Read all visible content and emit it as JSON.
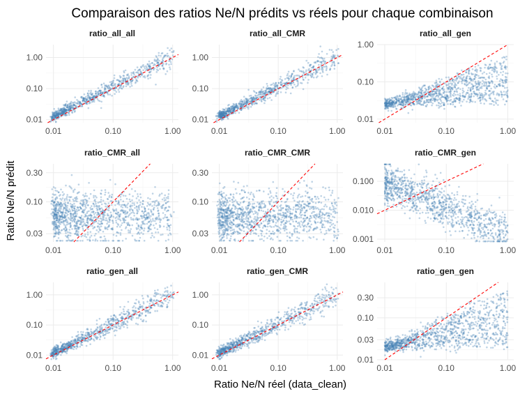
{
  "title": "Comparaison des ratios Ne/N prédits vs réels pour chaque combinaison",
  "xlabel": "Ratio Ne/N réel (data_clean)",
  "ylabel": "Ratio Ne/N prédit",
  "colors": {
    "points": "#4682b4",
    "identity_line": "#ff0000",
    "grid": "#ebebeb"
  },
  "chart_data": [
    {
      "type": "scatter",
      "title": "ratio_all_all",
      "x_scale": "log",
      "y_scale": "log",
      "xlim": [
        0.0075,
        1.25
      ],
      "ylim": [
        0.008,
        2.6
      ],
      "x_ticks": [
        "0.01",
        "0.10",
        "1.00"
      ],
      "y_ticks": [
        "0.01",
        "0.10",
        "1.00"
      ],
      "y_tick_values": [
        0.01,
        0.1,
        1
      ],
      "pattern": "linear",
      "center": [
        0.013,
        1.0
      ],
      "spread": 0.18,
      "n": 800
    },
    {
      "type": "scatter",
      "title": "ratio_all_CMR",
      "x_scale": "log",
      "y_scale": "log",
      "xlim": [
        0.0075,
        1.25
      ],
      "ylim": [
        0.008,
        2.6
      ],
      "x_ticks": [
        "0.01",
        "0.10",
        "1.00"
      ],
      "y_ticks": [
        "0.01",
        "0.10",
        "1.00"
      ],
      "y_tick_values": [
        0.01,
        0.1,
        1
      ],
      "pattern": "linear",
      "center": [
        0.013,
        1.0
      ],
      "spread": 0.18,
      "n": 800
    },
    {
      "type": "scatter",
      "title": "ratio_all_gen",
      "x_scale": "log",
      "y_scale": "log",
      "xlim": [
        0.0075,
        1.25
      ],
      "ylim": [
        0.008,
        1.0
      ],
      "x_ticks": [
        "0.01",
        "0.10",
        "1.00"
      ],
      "y_ticks": [
        "0.01",
        "0.10",
        "1.00"
      ],
      "y_tick_values": [
        0.01,
        0.1,
        1
      ],
      "pattern": "fan",
      "center": [
        0.018,
        0.025
      ],
      "spread": 0.15,
      "n": 1100
    },
    {
      "type": "scatter",
      "title": "ratio_CMR_all",
      "x_scale": "log",
      "y_scale": "log",
      "xlim": [
        0.0075,
        1.25
      ],
      "ylim": [
        0.022,
        0.42
      ],
      "x_ticks": [
        "0.01",
        "0.10",
        "1.00"
      ],
      "y_ticks": [
        "0.03",
        "0.10",
        "0.30"
      ],
      "y_tick_values": [
        0.03,
        0.1,
        0.3
      ],
      "pattern": "flat",
      "center": [
        0.06,
        0.06
      ],
      "spread": 0.2,
      "n": 1200
    },
    {
      "type": "scatter",
      "title": "ratio_CMR_CMR",
      "x_scale": "log",
      "y_scale": "log",
      "xlim": [
        0.0075,
        1.25
      ],
      "ylim": [
        0.022,
        0.42
      ],
      "x_ticks": [
        "0.01",
        "0.10",
        "1.00"
      ],
      "y_ticks": [
        "0.03",
        "0.10",
        "0.30"
      ],
      "y_tick_values": [
        0.03,
        0.1,
        0.3
      ],
      "pattern": "flat",
      "center": [
        0.06,
        0.06
      ],
      "spread": 0.2,
      "n": 1200
    },
    {
      "type": "scatter",
      "title": "ratio_CMR_gen",
      "x_scale": "log",
      "y_scale": "log",
      "xlim": [
        0.0075,
        1.25
      ],
      "ylim": [
        0.0008,
        0.4
      ],
      "x_ticks": [
        "0.01",
        "0.10",
        "1.00"
      ],
      "y_ticks": [
        "0.001",
        "0.010",
        "0.100"
      ],
      "y_tick_values": [
        0.001,
        0.01,
        0.1
      ],
      "pattern": "decline",
      "center": [
        0.1,
        0.003
      ],
      "spread": 0.35,
      "n": 1100
    },
    {
      "type": "scatter",
      "title": "ratio_gen_all",
      "x_scale": "log",
      "y_scale": "log",
      "xlim": [
        0.0075,
        1.25
      ],
      "ylim": [
        0.007,
        2.6
      ],
      "x_ticks": [
        "0.01",
        "0.10",
        "1.00"
      ],
      "y_ticks": [
        "0.01",
        "0.10",
        "1.00"
      ],
      "y_tick_values": [
        0.01,
        0.1,
        1
      ],
      "pattern": "linear",
      "center": [
        0.012,
        1.0
      ],
      "spread": 0.22,
      "n": 800
    },
    {
      "type": "scatter",
      "title": "ratio_gen_CMR",
      "x_scale": "log",
      "y_scale": "log",
      "xlim": [
        0.0075,
        1.25
      ],
      "ylim": [
        0.007,
        2.6
      ],
      "x_ticks": [
        "0.01",
        "0.10",
        "1.00"
      ],
      "y_ticks": [
        "0.01",
        "0.10",
        "1.00"
      ],
      "y_tick_values": [
        0.01,
        0.1,
        1
      ],
      "pattern": "linear",
      "center": [
        0.012,
        1.0
      ],
      "spread": 0.22,
      "n": 800
    },
    {
      "type": "scatter",
      "title": "ratio_gen_gen",
      "x_scale": "log",
      "y_scale": "log",
      "xlim": [
        0.0075,
        1.25
      ],
      "ylim": [
        0.01,
        0.7
      ],
      "x_ticks": [
        "0.01",
        "0.10",
        "1.00"
      ],
      "y_ticks": [
        "0.01",
        "0.03",
        "0.10",
        "0.30"
      ],
      "y_tick_values": [
        0.01,
        0.03,
        0.1,
        0.3
      ],
      "pattern": "fan",
      "center": [
        0.018,
        0.02
      ],
      "spread": 0.18,
      "n": 1100
    }
  ]
}
